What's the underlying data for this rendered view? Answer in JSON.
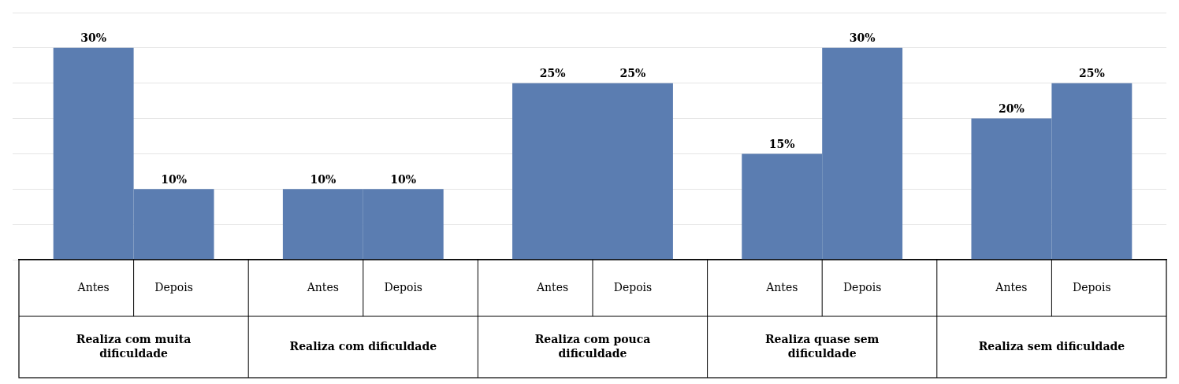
{
  "chart_data": {
    "type": "bar",
    "categories": [
      "Realiza com muita\ndificuldade",
      "Realiza com dificuldade",
      "Realiza com pouca\ndificuldade",
      "Realiza quase sem\ndificuldade",
      "Realiza sem dificuldade"
    ],
    "series": [
      {
        "name": "Antes",
        "color": "#5B7DB1",
        "values": [
          30,
          10,
          25,
          15,
          20
        ],
        "value_labels": [
          "30%",
          "10%",
          "25%",
          "15%",
          "20%"
        ]
      },
      {
        "name": "Depois",
        "color": "#5B7DB1",
        "values": [
          10,
          10,
          25,
          30,
          25
        ],
        "value_labels": [
          "10%",
          "10%",
          "25%",
          "30%",
          "25%"
        ]
      }
    ],
    "ylim": [
      0,
      35
    ],
    "yticks": [
      0,
      5,
      10,
      15,
      20,
      25,
      30,
      35
    ],
    "grid": true,
    "data_labels": true,
    "tick_labels": "x"
  }
}
